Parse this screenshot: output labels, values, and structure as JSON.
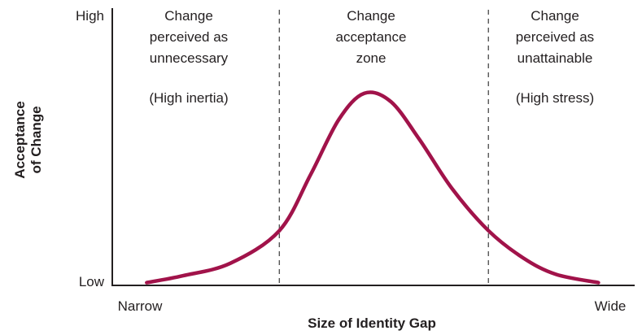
{
  "chart_data": {
    "type": "line",
    "title": "",
    "xlabel": "Size of Identity Gap",
    "ylabel": [
      "Acceptance",
      "of Change"
    ],
    "x_range": [
      0,
      1
    ],
    "y_range": [
      0,
      1
    ],
    "x_ticks": {
      "low": "Narrow",
      "high": "Wide"
    },
    "y_ticks": {
      "low": "Low",
      "high": "High"
    },
    "grid": false,
    "legend": "none",
    "zone_boundaries": [
      0.354,
      0.797
    ],
    "zones": [
      {
        "lines": [
          "Change",
          "perceived as",
          "unnecessary"
        ],
        "note": "(High inertia)"
      },
      {
        "lines": [
          "Change",
          "acceptance",
          "zone"
        ],
        "note": ""
      },
      {
        "lines": [
          "Change",
          "perceived as",
          "unattainable"
        ],
        "note": "(High stress)"
      }
    ],
    "series": [
      {
        "color": "#a1134a",
        "points": [
          [
            0.073,
            0.01
          ],
          [
            0.15,
            0.035
          ],
          [
            0.25,
            0.08
          ],
          [
            0.354,
            0.198
          ],
          [
            0.42,
            0.4
          ],
          [
            0.48,
            0.6
          ],
          [
            0.534,
            0.695
          ],
          [
            0.59,
            0.665
          ],
          [
            0.65,
            0.53
          ],
          [
            0.72,
            0.35
          ],
          [
            0.797,
            0.198
          ],
          [
            0.87,
            0.1
          ],
          [
            0.94,
            0.04
          ],
          [
            1.03,
            0.01
          ]
        ]
      }
    ]
  }
}
